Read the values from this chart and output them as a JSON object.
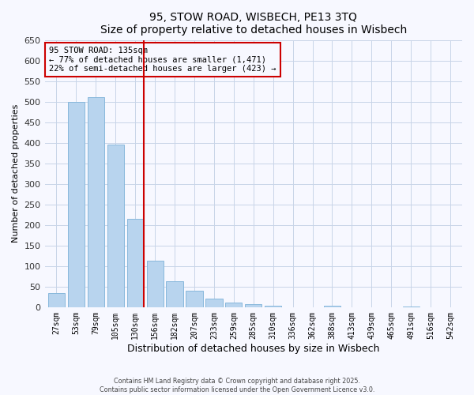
{
  "title": "95, STOW ROAD, WISBECH, PE13 3TQ",
  "subtitle": "Size of property relative to detached houses in Wisbech",
  "xlabel": "Distribution of detached houses by size in Wisbech",
  "ylabel": "Number of detached properties",
  "bar_labels": [
    "27sqm",
    "53sqm",
    "79sqm",
    "105sqm",
    "130sqm",
    "156sqm",
    "182sqm",
    "207sqm",
    "233sqm",
    "259sqm",
    "285sqm",
    "310sqm",
    "336sqm",
    "362sqm",
    "388sqm",
    "413sqm",
    "439sqm",
    "465sqm",
    "491sqm",
    "516sqm",
    "542sqm"
  ],
  "bar_values": [
    35,
    500,
    510,
    395,
    215,
    113,
    64,
    40,
    20,
    12,
    8,
    4,
    0,
    0,
    3,
    0,
    0,
    0,
    2,
    0,
    0
  ],
  "bar_color": "#b8d4ee",
  "bar_edge_color": "#88b8dc",
  "property_line_color": "#cc0000",
  "annotation_box_color": "#cc0000",
  "annotation_title": "95 STOW ROAD: 135sqm",
  "annotation_line1": "← 77% of detached houses are smaller (1,471)",
  "annotation_line2": "22% of semi-detached houses are larger (423) →",
  "ylim": [
    0,
    650
  ],
  "yticks": [
    0,
    50,
    100,
    150,
    200,
    250,
    300,
    350,
    400,
    450,
    500,
    550,
    600,
    650
  ],
  "footer1": "Contains HM Land Registry data © Crown copyright and database right 2025.",
  "footer2": "Contains public sector information licensed under the Open Government Licence v3.0.",
  "bg_color": "#f7f8ff",
  "grid_color": "#c8d4e8"
}
